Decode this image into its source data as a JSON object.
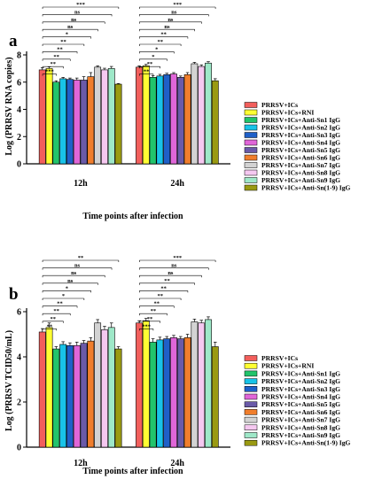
{
  "legend_entries": [
    "PRRSV+ICs",
    "PRRSV+ICs+RNI",
    "PRRSV+ICs+Anti-Sn1 IgG",
    "PRRSV+ICs+Anti-Sn2 IgG",
    "PRRSV+ICs+Anti-Sn3 IgG",
    "PRRSV+ICs+Anti-Sn4 IgG",
    "PRRSV+ICs+Anti-Sn5 IgG",
    "PRRSV+ICs+Anti-Sn6 IgG",
    "PRRSV+ICs+Anti-Sn7 IgG",
    "PRRSV+ICs+Anti-Sn8 IgG",
    "PRRSV+ICs+Anti-Sn9 IgG",
    "PRRSV+ICs+Anti-Sn(1-9) IgG"
  ],
  "series_colors": [
    "#f25f5c",
    "#ffff33",
    "#22c46b",
    "#18c3e8",
    "#1f60c8",
    "#e066d8",
    "#6a5aa8",
    "#f07e2c",
    "#d3d3d3",
    "#f5c8f0",
    "#9ee8c8",
    "#9a9a12"
  ],
  "chart_data": [
    {
      "panel": "a",
      "type": "bar",
      "categories": [
        "12h",
        "24h"
      ],
      "xlabel": "Time points after infection",
      "ylabel": "Log (PRRSV RNA copies)",
      "ylim": [
        0,
        8
      ],
      "yticks": [
        "0",
        "2",
        "4",
        "6",
        "8"
      ],
      "legend_position": "right",
      "series": [
        {
          "name": "PRRSV+ICs",
          "values": [
            6.9,
            7.1
          ]
        },
        {
          "name": "PRRSV+ICs+RNI",
          "values": [
            7.0,
            7.2
          ]
        },
        {
          "name": "PRRSV+ICs+Anti-Sn1 IgG",
          "values": [
            6.0,
            6.35
          ]
        },
        {
          "name": "PRRSV+ICs+Anti-Sn2 IgG",
          "values": [
            6.25,
            6.45
          ]
        },
        {
          "name": "PRRSV+ICs+Anti-Sn3 IgG",
          "values": [
            6.2,
            6.55
          ]
        },
        {
          "name": "PRRSV+ICs+Anti-Sn4 IgG",
          "values": [
            6.15,
            6.6
          ]
        },
        {
          "name": "PRRSV+ICs+Anti-Sn5 IgG",
          "values": [
            6.15,
            6.35
          ]
        },
        {
          "name": "PRRSV+ICs+Anti-Sn6 IgG",
          "values": [
            6.4,
            6.55
          ]
        },
        {
          "name": "PRRSV+ICs+Anti-Sn7 IgG",
          "values": [
            7.1,
            7.35
          ]
        },
        {
          "name": "PRRSV+ICs+Anti-Sn8 IgG",
          "values": [
            6.9,
            7.15
          ]
        },
        {
          "name": "PRRSV+ICs+Anti-Sn9 IgG",
          "values": [
            7.0,
            7.4
          ]
        },
        {
          "name": "PRRSV+ICs+Anti-Sn(1-9) IgG",
          "values": [
            5.85,
            6.1
          ]
        }
      ],
      "errors": [
        [
          0.15,
          0.1
        ],
        [
          0.12,
          0.1
        ],
        [
          0.1,
          0.12
        ],
        [
          0.1,
          0.12
        ],
        [
          0.1,
          0.1
        ],
        [
          0.15,
          0.1
        ],
        [
          0.25,
          0.1
        ],
        [
          0.3,
          0.15
        ],
        [
          0.1,
          0.1
        ],
        [
          0.12,
          0.12
        ],
        [
          0.15,
          0.1
        ],
        [
          0.05,
          0.15
        ]
      ],
      "significance": [
        {
          "label": "***",
          "values": [
            "***",
            "***"
          ]
        },
        {
          "label": "ns",
          "values": [
            "ns",
            "ns"
          ]
        },
        {
          "label": "ns",
          "values": [
            "ns",
            "ns"
          ]
        },
        {
          "label": "ns",
          "values": [
            "ns",
            "ns"
          ]
        },
        {
          "label": "*",
          "values": [
            "*",
            "**"
          ]
        },
        {
          "label": "**",
          "values": [
            "**",
            "**"
          ]
        },
        {
          "label": "**",
          "values": [
            "**",
            "*"
          ]
        },
        {
          "label": "**",
          "values": [
            "**",
            "*"
          ]
        },
        {
          "label": "**",
          "values": [
            "**",
            "**"
          ]
        },
        {
          "label": "***",
          "values": [
            "***",
            "**"
          ]
        }
      ]
    },
    {
      "panel": "b",
      "type": "bar",
      "categories": [
        "12h",
        "24h"
      ],
      "xlabel": "Time points after infection",
      "ylabel": "Log (PRRSV TCID50/mL)",
      "ylim": [
        0,
        6
      ],
      "yticks": [
        "0",
        "2",
        "4",
        "6"
      ],
      "legend_position": "right",
      "series": [
        {
          "name": "PRRSV+ICs",
          "values": [
            5.1,
            5.5
          ]
        },
        {
          "name": "PRRSV+ICs+RNI",
          "values": [
            5.3,
            5.6
          ]
        },
        {
          "name": "PRRSV+ICs+Anti-Sn1 IgG",
          "values": [
            4.35,
            4.65
          ]
        },
        {
          "name": "PRRSV+ICs+Anti-Sn2 IgG",
          "values": [
            4.55,
            4.75
          ]
        },
        {
          "name": "PRRSV+ICs+Anti-Sn3 IgG",
          "values": [
            4.5,
            4.8
          ]
        },
        {
          "name": "PRRSV+ICs+Anti-Sn4 IgG",
          "values": [
            4.5,
            4.85
          ]
        },
        {
          "name": "PRRSV+ICs+Anti-Sn5 IgG",
          "values": [
            4.6,
            4.8
          ]
        },
        {
          "name": "PRRSV+ICs+Anti-Sn6 IgG",
          "values": [
            4.7,
            4.85
          ]
        },
        {
          "name": "PRRSV+ICs+Anti-Sn7 IgG",
          "values": [
            5.5,
            5.55
          ]
        },
        {
          "name": "PRRSV+ICs+Anti-Sn8 IgG",
          "values": [
            5.2,
            5.5
          ]
        },
        {
          "name": "PRRSV+ICs+Anti-Sn9 IgG",
          "values": [
            5.3,
            5.65
          ]
        },
        {
          "name": "PRRSV+ICs+Anti-Sn(1-9) IgG",
          "values": [
            4.35,
            4.45
          ]
        }
      ],
      "errors": [
        [
          0.15,
          0.1
        ],
        [
          0.2,
          0.1
        ],
        [
          0.1,
          0.15
        ],
        [
          0.12,
          0.12
        ],
        [
          0.12,
          0.1
        ],
        [
          0.15,
          0.1
        ],
        [
          0.12,
          0.1
        ],
        [
          0.15,
          0.15
        ],
        [
          0.15,
          0.12
        ],
        [
          0.15,
          0.12
        ],
        [
          0.2,
          0.12
        ],
        [
          0.1,
          0.2
        ]
      ],
      "significance": [
        {
          "label": "**",
          "values": [
            "**",
            "***"
          ]
        },
        {
          "label": "ns",
          "values": [
            "ns",
            "ns"
          ]
        },
        {
          "label": "ns",
          "values": [
            "ns",
            "ns"
          ]
        },
        {
          "label": "ns",
          "values": [
            "ns",
            "**"
          ]
        },
        {
          "label": "*",
          "values": [
            "*",
            "**"
          ]
        },
        {
          "label": "*",
          "values": [
            "*",
            "**"
          ]
        },
        {
          "label": "**",
          "values": [
            "**",
            "**"
          ]
        },
        {
          "label": "**",
          "values": [
            "**",
            "**"
          ]
        },
        {
          "label": "**",
          "values": [
            "**",
            "**"
          ]
        },
        {
          "label": "**",
          "values": [
            "**",
            "***"
          ]
        }
      ]
    }
  ]
}
